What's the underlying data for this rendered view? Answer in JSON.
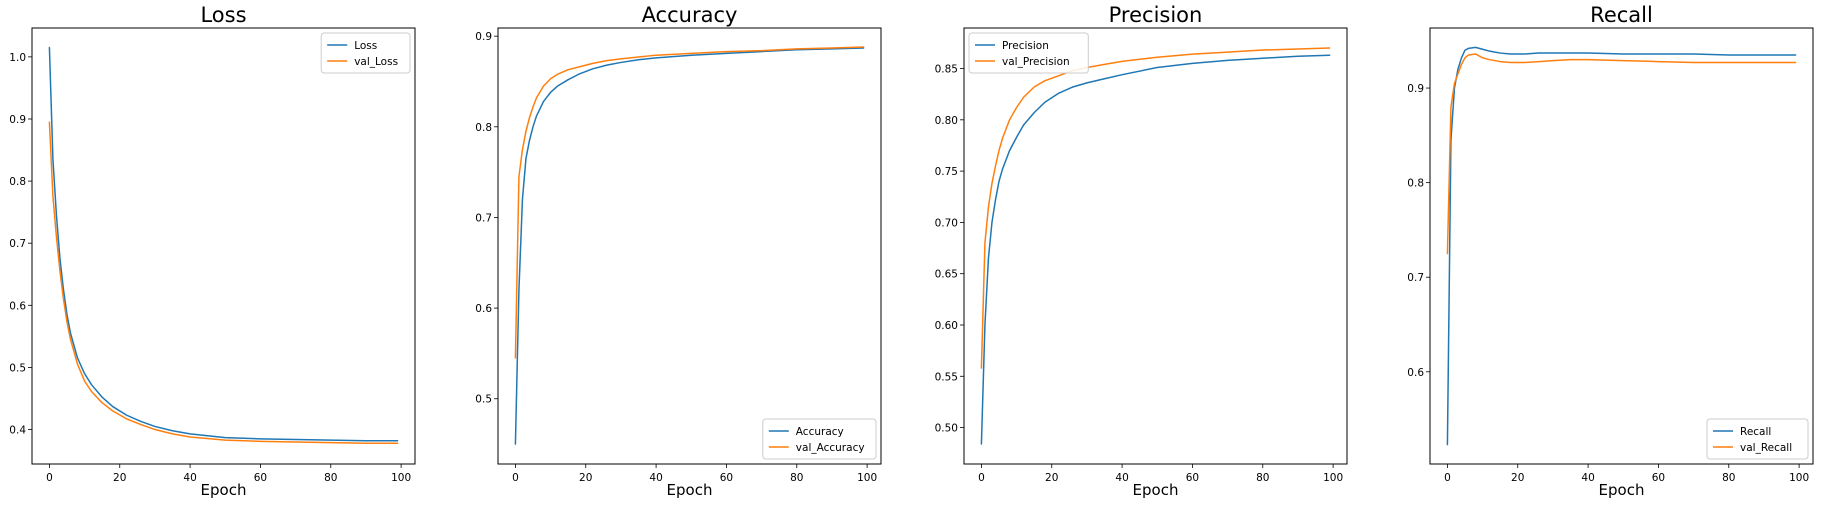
{
  "colors": {
    "train": "#1f77b4",
    "val": "#ff7f0e"
  },
  "chart_data": [
    {
      "type": "line",
      "title": "Loss",
      "xlabel": "Epoch",
      "ylabel": "",
      "xlim": [
        -4.95,
        103.95
      ],
      "ylim": [
        0.3445,
        1.0465
      ],
      "xticks": [
        0,
        20,
        40,
        60,
        80,
        100
      ],
      "yticks": [
        0.4,
        0.5,
        0.6,
        0.7,
        0.8,
        0.9,
        1.0
      ],
      "tick_decimals": 1,
      "legend": "top-right",
      "grid": false,
      "x": [
        0,
        1,
        2,
        3,
        4,
        5,
        6,
        8,
        10,
        12,
        15,
        18,
        22,
        26,
        30,
        35,
        40,
        50,
        60,
        70,
        80,
        90,
        99
      ],
      "series": [
        {
          "name": "Loss",
          "color": "train",
          "values": [
            1.015,
            0.835,
            0.745,
            0.675,
            0.625,
            0.585,
            0.555,
            0.515,
            0.49,
            0.472,
            0.452,
            0.437,
            0.423,
            0.413,
            0.405,
            0.398,
            0.393,
            0.387,
            0.385,
            0.384,
            0.383,
            0.382,
            0.382
          ]
        },
        {
          "name": "val_Loss",
          "color": "val",
          "values": [
            0.895,
            0.775,
            0.71,
            0.655,
            0.61,
            0.573,
            0.545,
            0.505,
            0.478,
            0.461,
            0.443,
            0.43,
            0.417,
            0.408,
            0.4,
            0.393,
            0.388,
            0.383,
            0.381,
            0.38,
            0.379,
            0.378,
            0.378
          ]
        }
      ]
    },
    {
      "type": "line",
      "title": "Accuracy",
      "xlabel": "Epoch",
      "ylabel": "",
      "xlim": [
        -4.95,
        103.95
      ],
      "ylim": [
        0.428,
        0.909
      ],
      "xticks": [
        0,
        20,
        40,
        60,
        80,
        100
      ],
      "yticks": [
        0.5,
        0.6,
        0.7,
        0.8,
        0.9
      ],
      "tick_decimals": 1,
      "legend": "bottom-right",
      "grid": false,
      "x": [
        0,
        1,
        2,
        3,
        4,
        5,
        6,
        8,
        10,
        12,
        15,
        18,
        22,
        26,
        30,
        35,
        40,
        50,
        60,
        70,
        80,
        90,
        99
      ],
      "series": [
        {
          "name": "Accuracy",
          "color": "train",
          "values": [
            0.45,
            0.62,
            0.72,
            0.765,
            0.785,
            0.8,
            0.812,
            0.828,
            0.838,
            0.845,
            0.852,
            0.858,
            0.864,
            0.868,
            0.871,
            0.874,
            0.876,
            0.879,
            0.881,
            0.883,
            0.885,
            0.886,
            0.887
          ]
        },
        {
          "name": "val_Accuracy",
          "color": "val",
          "values": [
            0.545,
            0.745,
            0.775,
            0.795,
            0.81,
            0.822,
            0.832,
            0.845,
            0.853,
            0.858,
            0.863,
            0.866,
            0.87,
            0.873,
            0.875,
            0.877,
            0.879,
            0.881,
            0.883,
            0.884,
            0.886,
            0.887,
            0.888
          ]
        }
      ]
    },
    {
      "type": "line",
      "title": "Precision",
      "xlabel": "Epoch",
      "ylabel": "",
      "xlim": [
        -4.95,
        103.95
      ],
      "ylim": [
        0.4645,
        0.8895
      ],
      "xticks": [
        0,
        20,
        40,
        60,
        80,
        100
      ],
      "yticks": [
        0.5,
        0.55,
        0.6,
        0.65,
        0.7,
        0.75,
        0.8,
        0.85
      ],
      "tick_decimals": 2,
      "legend": "top-left",
      "grid": false,
      "x": [
        0,
        1,
        2,
        3,
        4,
        5,
        6,
        8,
        10,
        12,
        15,
        18,
        22,
        26,
        30,
        35,
        40,
        50,
        60,
        70,
        80,
        90,
        99
      ],
      "series": [
        {
          "name": "Precision",
          "color": "train",
          "values": [
            0.484,
            0.6,
            0.665,
            0.7,
            0.722,
            0.74,
            0.752,
            0.77,
            0.783,
            0.795,
            0.807,
            0.817,
            0.826,
            0.832,
            0.836,
            0.84,
            0.844,
            0.851,
            0.855,
            0.858,
            0.86,
            0.862,
            0.863
          ]
        },
        {
          "name": "val_Precision",
          "color": "val",
          "values": [
            0.558,
            0.68,
            0.715,
            0.738,
            0.755,
            0.77,
            0.782,
            0.8,
            0.812,
            0.822,
            0.832,
            0.838,
            0.843,
            0.848,
            0.851,
            0.854,
            0.857,
            0.861,
            0.864,
            0.866,
            0.868,
            0.869,
            0.87
          ]
        }
      ]
    },
    {
      "type": "line",
      "title": "Recall",
      "xlabel": "Epoch",
      "ylabel": "",
      "xlim": [
        -4.95,
        103.95
      ],
      "ylim": [
        0.5025,
        0.9635
      ],
      "xticks": [
        0,
        20,
        40,
        60,
        80,
        100
      ],
      "yticks": [
        0.6,
        0.7,
        0.8,
        0.9
      ],
      "tick_decimals": 1,
      "legend": "bottom-right",
      "grid": false,
      "x": [
        0,
        1,
        2,
        3,
        4,
        5,
        6,
        8,
        10,
        12,
        15,
        18,
        22,
        26,
        30,
        35,
        40,
        50,
        60,
        70,
        80,
        90,
        99
      ],
      "series": [
        {
          "name": "Recall",
          "color": "train",
          "values": [
            0.523,
            0.845,
            0.9,
            0.92,
            0.932,
            0.94,
            0.942,
            0.943,
            0.941,
            0.939,
            0.937,
            0.936,
            0.936,
            0.937,
            0.937,
            0.937,
            0.937,
            0.936,
            0.936,
            0.936,
            0.935,
            0.935,
            0.935
          ]
        },
        {
          "name": "val_Recall",
          "color": "val",
          "values": [
            0.725,
            0.88,
            0.905,
            0.915,
            0.925,
            0.932,
            0.935,
            0.936,
            0.932,
            0.93,
            0.928,
            0.927,
            0.927,
            0.928,
            0.929,
            0.93,
            0.93,
            0.929,
            0.928,
            0.927,
            0.927,
            0.927,
            0.927
          ]
        }
      ]
    }
  ]
}
